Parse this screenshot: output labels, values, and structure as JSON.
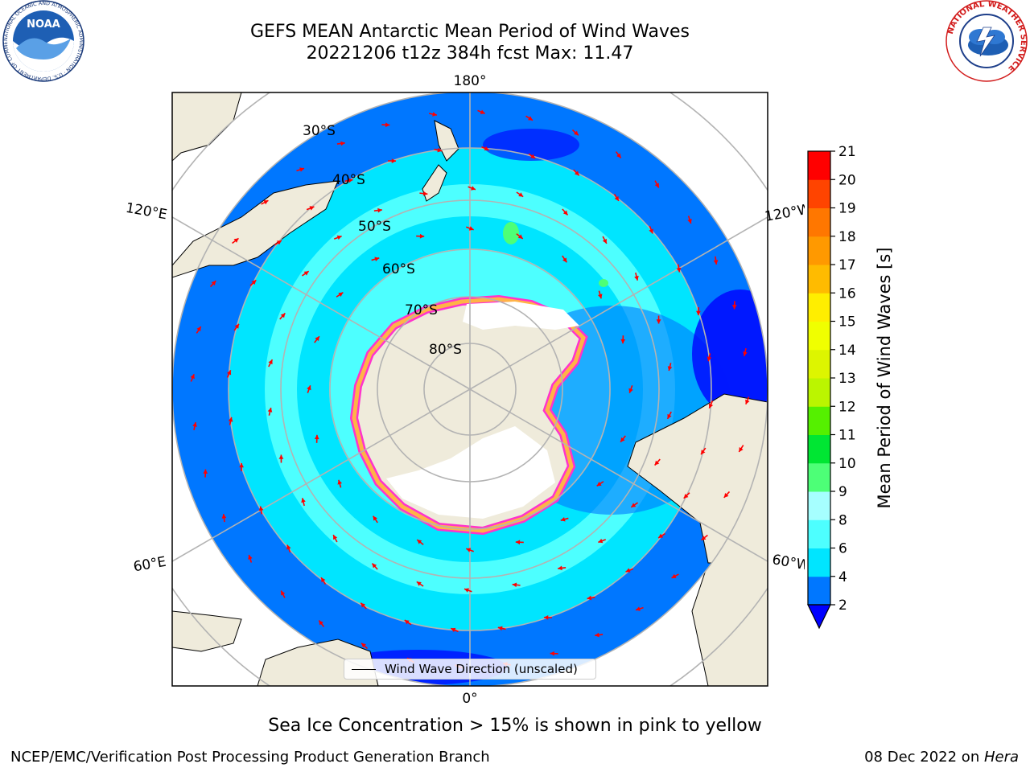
{
  "title": {
    "line1": "GEFS MEAN Antarctic Mean Period of Wind Waves",
    "line2": "20221206 t12z 384h fcst   Max: 11.47"
  },
  "logos": {
    "left": "NOAA",
    "left_ring": "NATIONAL OCEANIC AND ATMOSPHERIC ADMINISTRATION · U.S. DEPARTMENT OF COMMERCE",
    "right_ring": "NATIONAL WEATHER SERVICE"
  },
  "map": {
    "projection": "south polar stereographic",
    "longitude_labels": {
      "top": "180°",
      "bottom": "0°",
      "upper_left": "120°E",
      "upper_right": "120°W",
      "lower_left": "60°E",
      "lower_right": "60°W"
    },
    "latitude_labels": [
      "30°S",
      "40°S",
      "50°S",
      "60°S",
      "70°S",
      "80°S"
    ],
    "colors": {
      "land": "#efebdb",
      "sea_ice": "#ffffff",
      "ice_edge_pink": "#ff33cc",
      "ice_edge_orange": "#ffb347",
      "graticule": "#b3b3b3",
      "arrows": "#ff0000"
    },
    "legend": {
      "label": "Wind Wave Direction (unscaled)",
      "line_color": "#000000"
    }
  },
  "colorbar": {
    "label": "Mean Period of Wind Waves [s]",
    "ticks": [
      "2",
      "4",
      "6",
      "8",
      "9",
      "10",
      "11",
      "12",
      "13",
      "14",
      "15",
      "16",
      "17",
      "18",
      "19",
      "20",
      "21"
    ],
    "bins": [
      {
        "from": 2,
        "to": 4,
        "color": "#0077ff"
      },
      {
        "from": 4,
        "to": 6,
        "color": "#00e5ff"
      },
      {
        "from": 6,
        "to": 8,
        "color": "#4dffff"
      },
      {
        "from": 8,
        "to": 9,
        "color": "#a6ffff"
      },
      {
        "from": 9,
        "to": 10,
        "color": "#4dff77"
      },
      {
        "from": 10,
        "to": 11,
        "color": "#00e633"
      },
      {
        "from": 11,
        "to": 12,
        "color": "#55f000"
      },
      {
        "from": 12,
        "to": 13,
        "color": "#bbf500"
      },
      {
        "from": 13,
        "to": 14,
        "color": "#ddf500"
      },
      {
        "from": 14,
        "to": 15,
        "color": "#f0ff00"
      },
      {
        "from": 15,
        "to": 16,
        "color": "#ffee00"
      },
      {
        "from": 16,
        "to": 17,
        "color": "#ffbb00"
      },
      {
        "from": 17,
        "to": 18,
        "color": "#ff9900"
      },
      {
        "from": 18,
        "to": 19,
        "color": "#ff7700"
      },
      {
        "from": 19,
        "to": 20,
        "color": "#ff4400"
      },
      {
        "from": 20,
        "to": 21,
        "color": "#ff0000"
      }
    ],
    "under_color": "#0000ff"
  },
  "caption": "Sea Ice Concentration > 15% is shown in pink to yellow",
  "footer": {
    "left": "NCEP/EMC/Verification Post Processing Product Generation Branch",
    "right_prefix": "08 Dec 2022 on ",
    "right_machine": "Hera"
  }
}
